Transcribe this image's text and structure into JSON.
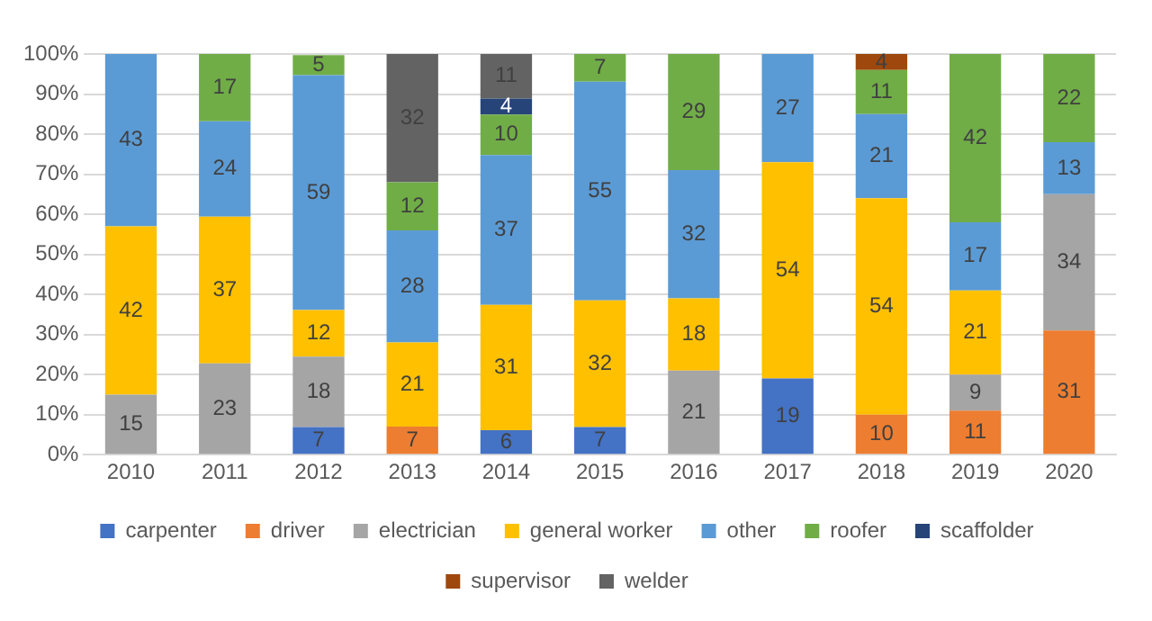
{
  "chart_data": {
    "type": "bar",
    "stacked": true,
    "categories": [
      "2010",
      "2011",
      "2012",
      "2013",
      "2014",
      "2015",
      "2016",
      "2017",
      "2018",
      "2019",
      "2020"
    ],
    "series": [
      {
        "name": "carpenter",
        "color": "#4472c4",
        "values": [
          null,
          null,
          6.9,
          null,
          6.1,
          6.9,
          null,
          19,
          null,
          null,
          null
        ],
        "value_labels": [
          null,
          null,
          "7",
          null,
          "6",
          "7",
          null,
          "19",
          null,
          null,
          null
        ]
      },
      {
        "name": "driver",
        "color": "#ed7d31",
        "values": [
          null,
          null,
          null,
          7,
          null,
          null,
          null,
          null,
          10,
          11,
          31
        ],
        "value_labels": [
          null,
          null,
          null,
          "7",
          null,
          null,
          null,
          null,
          "10",
          "11",
          "31"
        ]
      },
      {
        "name": "electrician",
        "color": "#a5a5a5",
        "values": [
          15,
          22.8,
          17.6,
          null,
          null,
          null,
          21,
          null,
          null,
          9,
          34
        ],
        "value_labels": [
          "15",
          "23",
          "18",
          null,
          null,
          null,
          "21",
          null,
          null,
          "9",
          "34"
        ]
      },
      {
        "name": "general worker",
        "color": "#ffc000",
        "values": [
          42,
          36.6,
          11.6,
          21,
          31.3,
          31.6,
          18,
          54,
          54,
          21,
          null
        ],
        "value_labels": [
          "42",
          "37",
          "12",
          "21",
          "31",
          "32",
          "18",
          "54",
          "54",
          "21",
          null
        ]
      },
      {
        "name": "other",
        "color": "#5b9bd5",
        "values": [
          43,
          23.8,
          58.6,
          28,
          37.4,
          54.6,
          32,
          27,
          21,
          17,
          13
        ],
        "value_labels": [
          "43",
          "24",
          "59",
          "28",
          "37",
          "55",
          "32",
          "27",
          "21",
          "17",
          "13"
        ]
      },
      {
        "name": "roofer",
        "color": "#70ad47",
        "values": [
          null,
          16.8,
          5.0,
          12,
          10.1,
          6.9,
          29,
          null,
          11,
          42,
          22
        ],
        "value_labels": [
          null,
          "17",
          "5",
          "12",
          "10",
          "7",
          "29",
          null,
          "11",
          "42",
          "22"
        ]
      },
      {
        "name": "scaffolder",
        "color": "#264478",
        "values": [
          null,
          null,
          null,
          null,
          4.0,
          null,
          null,
          null,
          null,
          null,
          null
        ],
        "value_labels": [
          null,
          null,
          null,
          null,
          "4",
          null,
          null,
          null,
          null,
          null,
          null
        ]
      },
      {
        "name": "supervisor",
        "color": "#9e480e",
        "values": [
          null,
          null,
          null,
          null,
          null,
          null,
          null,
          null,
          4,
          null,
          null
        ],
        "value_labels": [
          null,
          null,
          null,
          null,
          null,
          null,
          null,
          null,
          "4",
          null,
          null
        ]
      },
      {
        "name": "welder",
        "color": "#636363",
        "values": [
          null,
          null,
          null,
          32,
          11.1,
          null,
          null,
          null,
          null,
          null,
          null
        ],
        "value_labels": [
          null,
          null,
          null,
          "32",
          "11",
          null,
          null,
          null,
          null,
          null,
          null
        ]
      }
    ],
    "ylim": [
      0,
      100
    ],
    "yticks": [
      {
        "value": 0,
        "label": "0%"
      },
      {
        "value": 10,
        "label": "10%"
      },
      {
        "value": 20,
        "label": "20%"
      },
      {
        "value": 30,
        "label": "30%"
      },
      {
        "value": 40,
        "label": "40%"
      },
      {
        "value": 50,
        "label": "50%"
      },
      {
        "value": 60,
        "label": "60%"
      },
      {
        "value": 70,
        "label": "70%"
      },
      {
        "value": 80,
        "label": "80%"
      },
      {
        "value": 90,
        "label": "90%"
      },
      {
        "value": 100,
        "label": "100%"
      }
    ],
    "grid": "y",
    "legend": "bottom"
  }
}
